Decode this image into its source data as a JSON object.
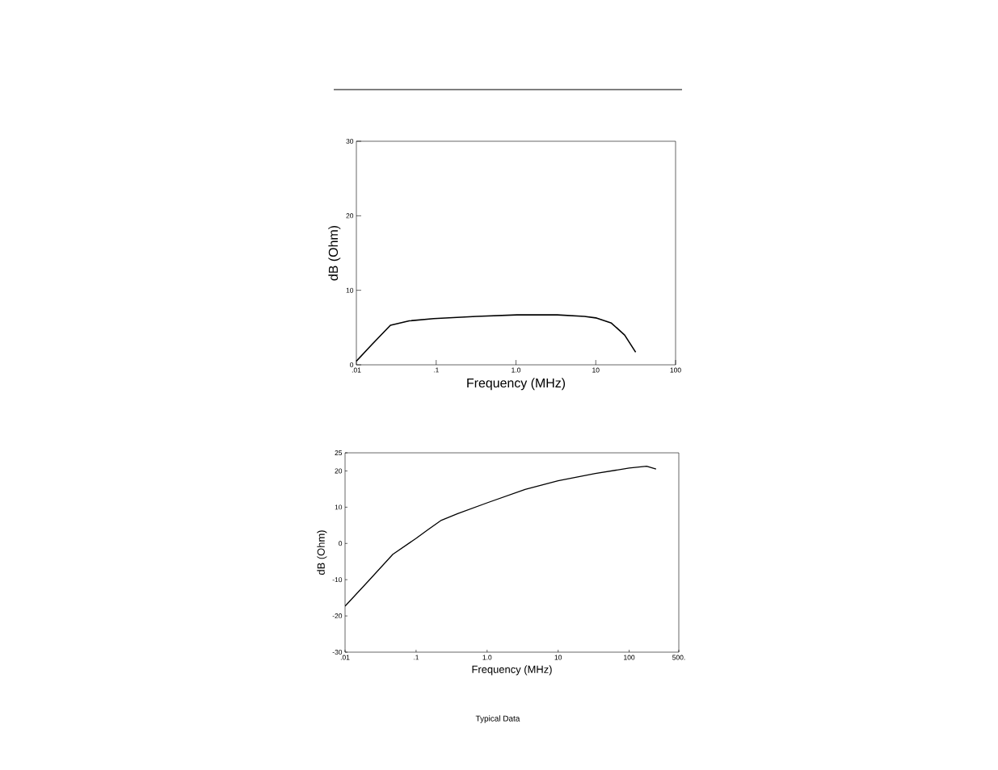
{
  "chart_data": [
    {
      "type": "line",
      "xlabel": "Frequency (MHz)",
      "ylabel": "dB (Ohm)",
      "log": "x",
      "grid": false,
      "xlim": [
        0.01,
        100
      ],
      "ylim": [
        0,
        30
      ],
      "xticks": [
        {
          "value": 0.01,
          "label": ".01"
        },
        {
          "value": 0.1,
          "label": ".1"
        },
        {
          "value": 1,
          "label": "1.0"
        },
        {
          "value": 10,
          "label": "10"
        },
        {
          "value": 100,
          "label": "100"
        }
      ],
      "yticks": [
        0,
        10,
        20,
        30
      ],
      "series": [
        {
          "color": "#000000",
          "x": [
            0.01,
            0.0156,
            0.0267,
            0.046,
            0.093,
            0.32,
            1.03,
            3.3,
            7.2,
            10,
            15.7,
            23,
            31.6
          ],
          "values": [
            0.5,
            2.7,
            5.3,
            5.9,
            6.2,
            6.5,
            6.7,
            6.7,
            6.5,
            6.3,
            5.6,
            4.0,
            1.7
          ]
        }
      ]
    },
    {
      "type": "line",
      "xlabel": "Frequency (MHz)",
      "ylabel": "dB (Ohm)",
      "log": "x",
      "grid": false,
      "xlim": [
        0.01,
        500
      ],
      "ylim": [
        -30,
        25
      ],
      "xticks": [
        {
          "value": 0.01,
          "label": ".01"
        },
        {
          "value": 0.1,
          "label": ".1"
        },
        {
          "value": 1,
          "label": "1.0"
        },
        {
          "value": 10,
          "label": "10"
        },
        {
          "value": 100,
          "label": "100"
        },
        {
          "value": 500,
          "label": "500."
        }
      ],
      "yticks": [
        -30,
        -20,
        -10,
        0,
        10,
        20,
        25
      ],
      "annotations": [
        "Typical Data"
      ],
      "series": [
        {
          "color": "#000000",
          "x": [
            0.01,
            0.0215,
            0.0471,
            0.1,
            0.147,
            0.227,
            0.385,
            1.0,
            3.43,
            10,
            33.4,
            100,
            176,
            239
          ],
          "values": [
            -17.3,
            -10.3,
            -3.0,
            1.4,
            3.8,
            6.4,
            8.2,
            11.2,
            14.9,
            17.3,
            19.3,
            20.8,
            21.3,
            20.5
          ]
        }
      ]
    }
  ]
}
